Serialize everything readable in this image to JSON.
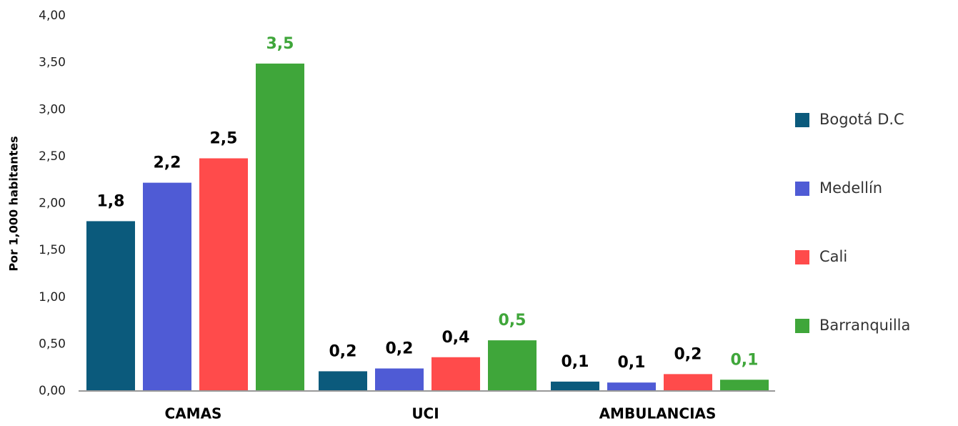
{
  "chart_data": {
    "type": "bar",
    "y_axis_label": "Por 1,000 habitantes",
    "categories": [
      "CAMAS",
      "UCI",
      "AMBULANCIAS"
    ],
    "series": [
      {
        "name": "Bogotá D.C",
        "color": "#0b5a7c",
        "values": [
          1.81,
          0.21,
          0.1
        ],
        "value_labels": [
          "1,8",
          "0,2",
          "0,1"
        ]
      },
      {
        "name": "Medellín",
        "color": "#4f5bd5",
        "values": [
          2.22,
          0.24,
          0.09
        ],
        "value_labels": [
          "2,2",
          "0,2",
          "0,1"
        ]
      },
      {
        "name": "Cali",
        "color": "#ff4b4b",
        "values": [
          2.48,
          0.36,
          0.18
        ],
        "value_labels": [
          "2,5",
          "0,4",
          "0,2"
        ]
      },
      {
        "name": "Barranquilla",
        "color": "#3fa63a",
        "values": [
          3.49,
          0.54,
          0.12
        ],
        "value_labels": [
          "3,5",
          "0,5",
          "0,1"
        ]
      }
    ],
    "ylim": [
      0,
      4
    ],
    "yticks": [
      {
        "value": 0,
        "label": "0,00"
      },
      {
        "value": 0.5,
        "label": "0,50"
      },
      {
        "value": 1,
        "label": "1,00"
      },
      {
        "value": 1.5,
        "label": "1,50"
      },
      {
        "value": 2,
        "label": "2,00"
      },
      {
        "value": 2.5,
        "label": "2,50"
      },
      {
        "value": 3,
        "label": "3,00"
      },
      {
        "value": 3.5,
        "label": "3,50"
      },
      {
        "value": 4,
        "label": "4,00"
      }
    ],
    "legend": "right"
  }
}
